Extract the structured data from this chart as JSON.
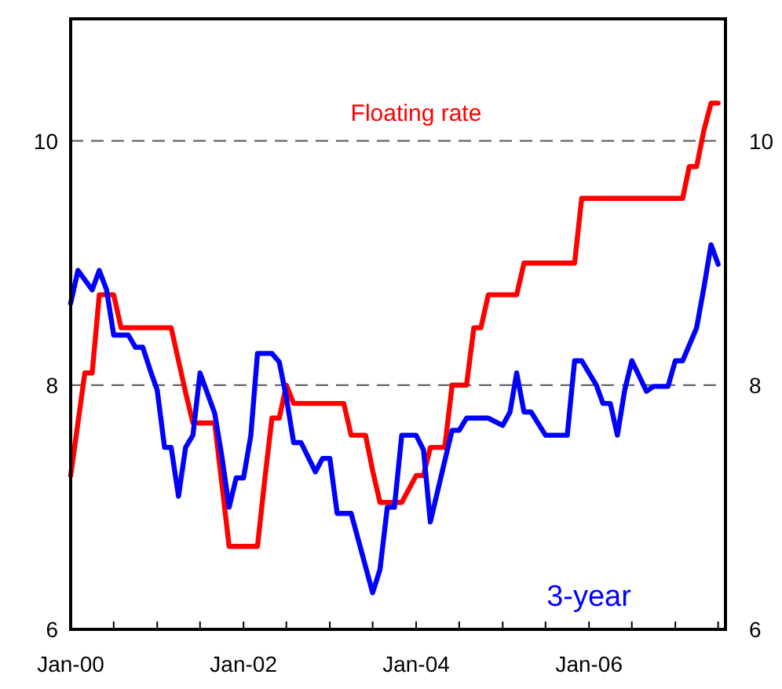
{
  "chart_data": {
    "type": "line",
    "ylim": [
      6,
      11
    ],
    "yticks": [
      6,
      8,
      10
    ],
    "y2lim": [
      6,
      11
    ],
    "y2ticks": [
      6,
      8,
      10
    ],
    "xlim": [
      "2000-01",
      "2007-08"
    ],
    "xticks": [
      {
        "value": "2000-01",
        "label": "Jan-00"
      },
      {
        "value": "2000-07",
        "label": null
      },
      {
        "value": "2001-01",
        "label": null
      },
      {
        "value": "2001-07",
        "label": null
      },
      {
        "value": "2002-01",
        "label": "Jan-02"
      },
      {
        "value": "2002-07",
        "label": null
      },
      {
        "value": "2003-01",
        "label": null
      },
      {
        "value": "2003-07",
        "label": null
      },
      {
        "value": "2004-01",
        "label": "Jan-04"
      },
      {
        "value": "2004-07",
        "label": null
      },
      {
        "value": "2005-01",
        "label": null
      },
      {
        "value": "2005-07",
        "label": null
      },
      {
        "value": "2006-01",
        "label": "Jan-06"
      },
      {
        "value": "2006-07",
        "label": null
      },
      {
        "value": "2007-01",
        "label": null
      },
      {
        "value": "2007-07",
        "label": null
      }
    ],
    "grid": "y",
    "line_style": "solid",
    "marker": "none",
    "legend": false,
    "series": [
      {
        "name": "Floating rate",
        "color": "#ff0000",
        "x": [
          "2000-01",
          "2000-03",
          "2000-04",
          "2000-05",
          "2000-07",
          "2000-08",
          "2001-03",
          "2001-05",
          "2001-06",
          "2001-09",
          "2001-10",
          "2001-11",
          "2002-03",
          "2002-04",
          "2002-05",
          "2002-06",
          "2002-07",
          "2002-08",
          "2003-03",
          "2003-04",
          "2003-06",
          "2003-07",
          "2003-08",
          "2003-11",
          "2004-01",
          "2004-02",
          "2004-03",
          "2004-05",
          "2004-06",
          "2004-08",
          "2004-09",
          "2004-10",
          "2004-11",
          "2005-03",
          "2005-04",
          "2005-11",
          "2005-12",
          "2007-02",
          "2007-03",
          "2007-04",
          "2007-05",
          "2007-06",
          "2007-07"
        ],
        "values": [
          7.26,
          8.1,
          8.1,
          8.74,
          8.74,
          8.47,
          8.47,
          7.94,
          7.69,
          7.69,
          7.2,
          6.68,
          6.68,
          7.23,
          7.73,
          7.73,
          8.0,
          7.85,
          7.85,
          7.59,
          7.59,
          7.3,
          7.04,
          7.04,
          7.26,
          7.26,
          7.49,
          7.49,
          8.0,
          8.0,
          8.47,
          8.47,
          8.74,
          8.74,
          9.0,
          9.0,
          9.53,
          9.53,
          9.79,
          9.79,
          10.08,
          10.31,
          10.31
        ]
      },
      {
        "name": "3-year",
        "color": "#0000ff",
        "x": [
          "2000-01",
          "2000-02",
          "2000-04",
          "2000-05",
          "2000-06",
          "2000-07",
          "2000-09",
          "2000-10",
          "2000-11",
          "2000-12",
          "2001-01",
          "2001-02",
          "2001-03",
          "2001-04",
          "2001-05",
          "2001-06",
          "2001-07",
          "2001-09",
          "2001-10",
          "2001-11",
          "2001-12",
          "2002-01",
          "2002-02",
          "2002-03",
          "2002-05",
          "2002-06",
          "2002-07",
          "2002-08",
          "2002-09",
          "2002-11",
          "2002-12",
          "2003-01",
          "2003-02",
          "2003-04",
          "2003-07",
          "2003-08",
          "2003-09",
          "2003-10",
          "2003-11",
          "2004-01",
          "2004-02",
          "2004-03",
          "2004-05",
          "2004-06",
          "2004-07",
          "2004-08",
          "2004-11",
          "2005-01",
          "2005-02",
          "2005-03",
          "2005-04",
          "2005-05",
          "2005-07",
          "2005-10",
          "2005-11",
          "2005-12",
          "2006-02",
          "2006-03",
          "2006-04",
          "2006-05",
          "2006-06",
          "2006-07",
          "2006-09",
          "2006-10",
          "2006-12",
          "2007-01",
          "2007-02",
          "2007-04",
          "2007-05",
          "2007-06",
          "2007-07"
        ],
        "values": [
          8.67,
          8.94,
          8.78,
          8.94,
          8.78,
          8.41,
          8.41,
          8.31,
          8.31,
          8.13,
          7.96,
          7.49,
          7.49,
          7.09,
          7.49,
          7.59,
          8.1,
          7.77,
          7.42,
          7.0,
          7.24,
          7.24,
          7.59,
          8.26,
          8.26,
          8.19,
          7.9,
          7.53,
          7.53,
          7.29,
          7.4,
          7.4,
          6.95,
          6.95,
          6.3,
          6.49,
          7.0,
          7.0,
          7.59,
          7.59,
          7.47,
          6.88,
          7.38,
          7.63,
          7.63,
          7.73,
          7.73,
          7.67,
          7.78,
          8.1,
          7.78,
          7.78,
          7.59,
          7.59,
          8.2,
          8.2,
          8.0,
          7.85,
          7.85,
          7.59,
          7.96,
          8.2,
          7.95,
          7.99,
          7.99,
          8.2,
          8.2,
          8.47,
          8.79,
          9.15,
          8.99
        ]
      }
    ]
  }
}
